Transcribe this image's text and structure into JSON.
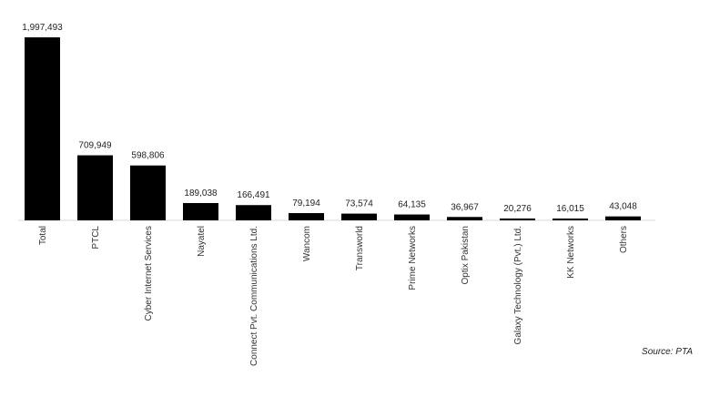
{
  "chart_data": {
    "type": "bar",
    "categories": [
      "Total",
      "PTCL",
      "Cyber Internet Services",
      "Nayatel",
      "Connect Pvt. Communications Ltd.",
      "Wancom",
      "Transworld",
      "Prime Networks",
      "Optix Pakistan",
      "Galaxy Technology (Pvt.) Ltd.",
      "KK Networks",
      "Others"
    ],
    "values": [
      1997493,
      709949,
      598806,
      189038,
      166491,
      79194,
      73574,
      64135,
      36967,
      20276,
      16015,
      43048
    ],
    "value_labels": [
      "1,997,493",
      "709,949",
      "598,806",
      "189,038",
      "166,491",
      "79,194",
      "73,574",
      "64,135",
      "36,967",
      "20,276",
      "16,015",
      "43,048"
    ],
    "bar_color": "#000000",
    "grid": false,
    "legend": "none"
  },
  "source": "Source: PTA"
}
